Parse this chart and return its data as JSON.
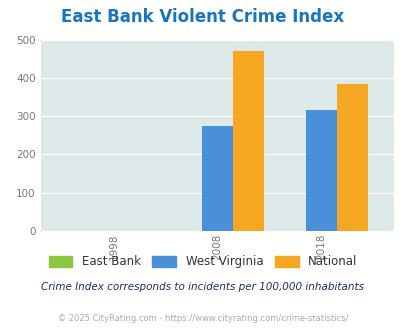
{
  "title": "East Bank Violent Crime Index",
  "title_color": "#1a75bc",
  "years": [
    "1998",
    "2008",
    "2018"
  ],
  "east_bank": [
    0,
    0,
    0
  ],
  "west_virginia": [
    0,
    275,
    315
  ],
  "national": [
    0,
    470,
    385
  ],
  "east_bank_color": "#8dc63f",
  "west_virginia_color": "#4a90d9",
  "national_color": "#f5a623",
  "ylim": [
    0,
    500
  ],
  "yticks": [
    0,
    100,
    200,
    300,
    400,
    500
  ],
  "bg_color": "#dde8e8",
  "fig_bg": "#ffffff",
  "bar_width": 0.3,
  "legend_labels": [
    "East Bank",
    "West Virginia",
    "National"
  ],
  "footnote1": "Crime Index corresponds to incidents per 100,000 inhabitants",
  "footnote2": "© 2025 CityRating.com - https://www.cityrating.com/crime-statistics/",
  "footnote1_color": "#1a3060",
  "footnote2_color": "#aaaaaa"
}
